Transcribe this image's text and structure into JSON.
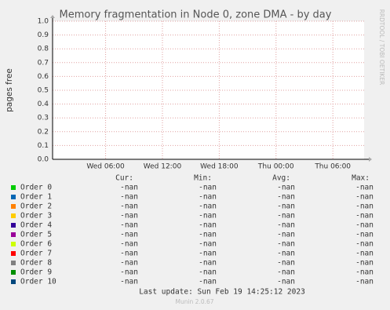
{
  "chart_data": {
    "type": "line",
    "title": "Memory fragmentation in Node 0, zone DMA - by day",
    "ylabel": "pages free",
    "side_text": "RRDTOOL / TOBI OETIKER",
    "ylim": [
      0,
      1
    ],
    "yticks": [
      {
        "value": 0,
        "label": "0.0"
      },
      {
        "value": 0.1,
        "label": "0.1"
      },
      {
        "value": 0.2,
        "label": "0.2"
      },
      {
        "value": 0.3,
        "label": "0.3"
      },
      {
        "value": 0.4,
        "label": "0.4"
      },
      {
        "value": 0.5,
        "label": "0.5"
      },
      {
        "value": 0.6,
        "label": "0.6"
      },
      {
        "value": 0.7,
        "label": "0.7"
      },
      {
        "value": 0.8,
        "label": "0.8"
      },
      {
        "value": 0.9,
        "label": "0.9"
      },
      {
        "value": 1,
        "label": "1.0"
      }
    ],
    "xlim": [
      0.4,
      33.3
    ],
    "xticks": [
      {
        "value": 6,
        "label": "Wed 06:00"
      },
      {
        "value": 12,
        "label": "Wed 12:00"
      },
      {
        "value": 18,
        "label": "Wed 18:00"
      },
      {
        "value": 24,
        "label": "Thu 00:00"
      },
      {
        "value": 30,
        "label": "Thu 06:00"
      }
    ],
    "grid": true,
    "columns": [
      "Cur:",
      "Min:",
      "Avg:",
      "Max:"
    ],
    "series": [
      {
        "name": "Order 0",
        "color": "#00cc00",
        "stats": [
          "-nan",
          "-nan",
          "-nan",
          "-nan"
        ]
      },
      {
        "name": "Order 1",
        "color": "#0066b3",
        "stats": [
          "-nan",
          "-nan",
          "-nan",
          "-nan"
        ]
      },
      {
        "name": "Order 2",
        "color": "#ff8000",
        "stats": [
          "-nan",
          "-nan",
          "-nan",
          "-nan"
        ]
      },
      {
        "name": "Order 3",
        "color": "#ffcc00",
        "stats": [
          "-nan",
          "-nan",
          "-nan",
          "-nan"
        ]
      },
      {
        "name": "Order 4",
        "color": "#330099",
        "stats": [
          "-nan",
          "-nan",
          "-nan",
          "-nan"
        ]
      },
      {
        "name": "Order 5",
        "color": "#990099",
        "stats": [
          "-nan",
          "-nan",
          "-nan",
          "-nan"
        ]
      },
      {
        "name": "Order 6",
        "color": "#ccff00",
        "stats": [
          "-nan",
          "-nan",
          "-nan",
          "-nan"
        ]
      },
      {
        "name": "Order 7",
        "color": "#ff0000",
        "stats": [
          "-nan",
          "-nan",
          "-nan",
          "-nan"
        ]
      },
      {
        "name": "Order 8",
        "color": "#808080",
        "stats": [
          "-nan",
          "-nan",
          "-nan",
          "-nan"
        ]
      },
      {
        "name": "Order 9",
        "color": "#008f00",
        "stats": [
          "-nan",
          "-nan",
          "-nan",
          "-nan"
        ]
      },
      {
        "name": "Order 10",
        "color": "#00487d",
        "stats": [
          "-nan",
          "-nan",
          "-nan",
          "-nan"
        ]
      }
    ],
    "last_update": "Last update: Sun Feb 19 14:25:12 2023",
    "footer": "Munin 2.0.67"
  }
}
